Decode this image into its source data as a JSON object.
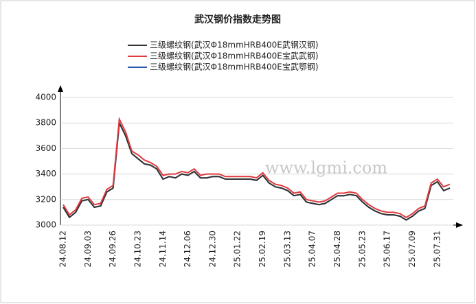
{
  "chart_data": {
    "type": "line",
    "title": "武汉钢价指数走势图",
    "watermark": "www.lgmi.com",
    "categories": [
      "24.08.12",
      null,
      null,
      null,
      "24.09.03",
      null,
      null,
      null,
      "24.09.26",
      null,
      null,
      null,
      "24.10.23",
      null,
      null,
      null,
      "24.11.14",
      null,
      null,
      null,
      "24.12.06",
      null,
      null,
      null,
      "24.12.30",
      null,
      null,
      null,
      "25.01.22",
      null,
      null,
      null,
      "25.02.19",
      null,
      null,
      null,
      "25.03.13",
      null,
      null,
      null,
      "25.04.07",
      null,
      null,
      null,
      "25.04.28",
      null,
      null,
      null,
      "25.05.23",
      null,
      null,
      null,
      "25.06.17",
      null,
      null,
      null,
      "25.07.09",
      null,
      null,
      null,
      "25.07.31",
      null,
      null
    ],
    "series": [
      {
        "name": "三级螺纹钢(武汉Φ18mmHRB400E武钢汉钢)",
        "color": "#333333",
        "values": [
          3140,
          3060,
          3100,
          3190,
          3200,
          3140,
          3150,
          3260,
          3290,
          3800,
          3700,
          3560,
          3520,
          3480,
          3470,
          3440,
          3360,
          3380,
          3370,
          3400,
          3390,
          3420,
          3370,
          3370,
          3380,
          3380,
          3360,
          3360,
          3360,
          3360,
          3360,
          3350,
          3390,
          3330,
          3300,
          3290,
          3270,
          3230,
          3240,
          3180,
          3170,
          3160,
          3170,
          3200,
          3230,
          3230,
          3240,
          3230,
          3180,
          3140,
          3110,
          3090,
          3080,
          3080,
          3070,
          3040,
          3070,
          3110,
          3130,
          3310,
          3340,
          3270,
          3290
        ]
      },
      {
        "name": "三级螺纹钢(武汉Φ18mmHRB400E宝武武钢)",
        "color": "#e0393e",
        "values": [
          3160,
          3080,
          3120,
          3210,
          3220,
          3160,
          3170,
          3280,
          3310,
          3830,
          3730,
          3580,
          3550,
          3510,
          3490,
          3460,
          3390,
          3400,
          3400,
          3420,
          3410,
          3440,
          3390,
          3400,
          3400,
          3400,
          3380,
          3380,
          3380,
          3380,
          3380,
          3370,
          3410,
          3350,
          3320,
          3310,
          3290,
          3250,
          3260,
          3200,
          3190,
          3180,
          3190,
          3220,
          3250,
          3250,
          3260,
          3250,
          3200,
          3160,
          3130,
          3110,
          3100,
          3100,
          3090,
          3060,
          3090,
          3130,
          3150,
          3330,
          3360,
          3300,
          3320
        ]
      },
      {
        "name": "三级螺纹钢(武汉Φ18mmHRB400E宝武鄂钢)",
        "color": "#2a56a8",
        "values": [
          3140,
          3060,
          3100,
          3190,
          3200,
          3140,
          3150,
          3260,
          3290,
          3800,
          3700,
          3560,
          3520,
          3480,
          3470,
          3440,
          3360,
          3380,
          3370,
          3400,
          3390,
          3420,
          3370,
          3370,
          3380,
          3380,
          3360,
          3360,
          3360,
          3360,
          3360,
          3350,
          3390,
          3330,
          3300,
          3290,
          3270,
          3230,
          3240,
          3180,
          3170,
          3160,
          3170,
          3200,
          3230,
          3230,
          3240,
          3230,
          3180,
          3140,
          3110,
          3090,
          3080,
          3080,
          3070,
          3040,
          3070,
          3110,
          3130,
          3310,
          3340,
          3270,
          3290
        ]
      }
    ],
    "ylim": [
      3000,
      4000
    ],
    "yticks": [
      3000,
      3200,
      3400,
      3600,
      3800,
      4000
    ],
    "grid": true
  }
}
